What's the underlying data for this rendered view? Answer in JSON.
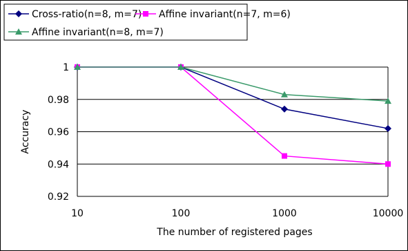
{
  "chart_data": {
    "type": "line",
    "title": "",
    "xlabel": "The number of registered pages",
    "ylabel": "Accuracy",
    "x_scale": "log",
    "x": [
      10,
      100,
      1000,
      10000
    ],
    "x_tick_labels": [
      "10",
      "100",
      "1000",
      "10000"
    ],
    "ylim": [
      0.92,
      1.0
    ],
    "y_ticks": [
      0.92,
      0.94,
      0.96,
      0.98,
      1.0
    ],
    "y_tick_labels": [
      "0.92",
      "0.94",
      "0.96",
      "0.98",
      "1"
    ],
    "grid": "horizontal",
    "legend_position": "top",
    "series": [
      {
        "name": "Cross-ratio(n=8, m=7)",
        "color": "#000080",
        "marker": "diamond",
        "values": [
          1.0,
          1.0,
          0.974,
          0.962
        ]
      },
      {
        "name": "Affine invariant(n=7, m=6)",
        "color": "#ff00ff",
        "marker": "square",
        "values": [
          1.0,
          1.0,
          0.945,
          0.94
        ]
      },
      {
        "name": "Affine invariant(n=8, m=7)",
        "color": "#3a9a6a",
        "marker": "triangle",
        "values": [
          1.0,
          1.0,
          0.983,
          0.979
        ]
      }
    ]
  }
}
